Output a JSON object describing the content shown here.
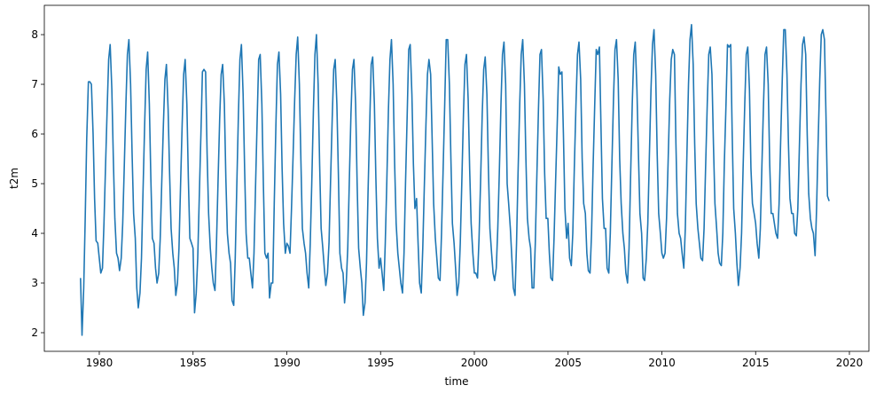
{
  "chart_data": {
    "type": "line",
    "xlabel": "time",
    "ylabel": "t2m",
    "color": "#1f77b4",
    "xlim": [
      1977.07,
      2021.04
    ],
    "ylim": [
      1.625,
      8.59
    ],
    "xticks": [
      1980,
      1985,
      1990,
      1995,
      2000,
      2005,
      2010,
      2015,
      2020
    ],
    "yticks": [
      2,
      3,
      4,
      5,
      6,
      7,
      8
    ],
    "x": [
      1979.0,
      1979.08,
      1979.17,
      1979.25,
      1979.33,
      1979.42,
      1979.5,
      1979.58,
      1979.67,
      1979.75,
      1979.83,
      1979.92,
      1980.0,
      1980.08,
      1980.17,
      1980.25,
      1980.33,
      1980.42,
      1980.5,
      1980.58,
      1980.67,
      1980.75,
      1980.83,
      1980.92,
      1981.0,
      1981.08,
      1981.17,
      1981.25,
      1981.33,
      1981.42,
      1981.5,
      1981.58,
      1981.67,
      1981.75,
      1981.83,
      1981.92,
      1982.0,
      1982.08,
      1982.17,
      1982.25,
      1982.33,
      1982.42,
      1982.5,
      1982.58,
      1982.67,
      1982.75,
      1982.83,
      1982.92,
      1983.0,
      1983.08,
      1983.17,
      1983.25,
      1983.33,
      1983.42,
      1983.5,
      1983.58,
      1983.67,
      1983.75,
      1983.83,
      1983.92,
      1984.0,
      1984.08,
      1984.17,
      1984.25,
      1984.33,
      1984.42,
      1984.5,
      1984.58,
      1984.67,
      1984.75,
      1984.83,
      1984.92,
      1985.0,
      1985.08,
      1985.17,
      1985.25,
      1985.33,
      1985.42,
      1985.5,
      1985.58,
      1985.67,
      1985.75,
      1985.83,
      1985.92,
      1986.0,
      1986.08,
      1986.17,
      1986.25,
      1986.33,
      1986.42,
      1986.5,
      1986.58,
      1986.67,
      1986.75,
      1986.83,
      1986.92,
      1987.0,
      1987.08,
      1987.17,
      1987.25,
      1987.33,
      1987.42,
      1987.5,
      1987.58,
      1987.67,
      1987.75,
      1987.83,
      1987.92,
      1988.0,
      1988.08,
      1988.17,
      1988.25,
      1988.33,
      1988.42,
      1988.5,
      1988.58,
      1988.67,
      1988.75,
      1988.83,
      1988.92,
      1989.0,
      1989.08,
      1989.17,
      1989.25,
      1989.33,
      1989.42,
      1989.5,
      1989.58,
      1989.67,
      1989.75,
      1989.83,
      1989.92,
      1990.0,
      1990.08,
      1990.17,
      1990.25,
      1990.33,
      1990.42,
      1990.5,
      1990.58,
      1990.67,
      1990.75,
      1990.83,
      1990.92,
      1991.0,
      1991.08,
      1991.17,
      1991.25,
      1991.33,
      1991.42,
      1991.5,
      1991.58,
      1991.67,
      1991.75,
      1991.83,
      1991.92,
      1992.0,
      1992.08,
      1992.17,
      1992.25,
      1992.33,
      1992.42,
      1992.5,
      1992.58,
      1992.67,
      1992.75,
      1992.83,
      1992.92,
      1993.0,
      1993.08,
      1993.17,
      1993.25,
      1993.33,
      1993.42,
      1993.5,
      1993.58,
      1993.67,
      1993.75,
      1993.83,
      1993.92,
      1994.0,
      1994.08,
      1994.17,
      1994.25,
      1994.33,
      1994.42,
      1994.5,
      1994.58,
      1994.67,
      1994.75,
      1994.83,
      1994.92,
      1995.0,
      1995.08,
      1995.17,
      1995.25,
      1995.33,
      1995.42,
      1995.5,
      1995.58,
      1995.67,
      1995.75,
      1995.83,
      1995.92,
      1996.0,
      1996.08,
      1996.17,
      1996.25,
      1996.33,
      1996.42,
      1996.5,
      1996.58,
      1996.67,
      1996.75,
      1996.83,
      1996.92,
      1997.0,
      1997.08,
      1997.17,
      1997.25,
      1997.33,
      1997.42,
      1997.5,
      1997.58,
      1997.67,
      1997.75,
      1997.83,
      1997.92,
      1998.0,
      1998.08,
      1998.17,
      1998.25,
      1998.33,
      1998.42,
      1998.5,
      1998.58,
      1998.67,
      1998.75,
      1998.83,
      1998.92,
      1999.0,
      1999.08,
      1999.17,
      1999.25,
      1999.33,
      1999.42,
      1999.5,
      1999.58,
      1999.67,
      1999.75,
      1999.83,
      1999.92,
      2000.0,
      2000.08,
      2000.17,
      2000.25,
      2000.33,
      2000.42,
      2000.5,
      2000.58,
      2000.67,
      2000.75,
      2000.83,
      2000.92,
      2001.0,
      2001.08,
      2001.17,
      2001.25,
      2001.33,
      2001.42,
      2001.5,
      2001.58,
      2001.67,
      2001.75,
      2001.83,
      2001.92,
      2002.0,
      2002.08,
      2002.17,
      2002.25,
      2002.33,
      2002.42,
      2002.5,
      2002.58,
      2002.67,
      2002.75,
      2002.83,
      2002.92,
      2003.0,
      2003.08,
      2003.17,
      2003.25,
      2003.33,
      2003.42,
      2003.5,
      2003.58,
      2003.67,
      2003.75,
      2003.83,
      2003.92,
      2004.0,
      2004.08,
      2004.17,
      2004.25,
      2004.33,
      2004.42,
      2004.5,
      2004.58,
      2004.67,
      2004.75,
      2004.83,
      2004.92,
      2005.0,
      2005.08,
      2005.17,
      2005.25,
      2005.33,
      2005.42,
      2005.5,
      2005.58,
      2005.67,
      2005.75,
      2005.83,
      2005.92,
      2006.0,
      2006.08,
      2006.17,
      2006.25,
      2006.33,
      2006.42,
      2006.5,
      2006.58,
      2006.67,
      2006.75,
      2006.83,
      2006.92,
      2007.0,
      2007.08,
      2007.17,
      2007.25,
      2007.33,
      2007.42,
      2007.5,
      2007.58,
      2007.67,
      2007.75,
      2007.83,
      2007.92,
      2008.0,
      2008.08,
      2008.17,
      2008.25,
      2008.33,
      2008.42,
      2008.5,
      2008.58,
      2008.67,
      2008.75,
      2008.83,
      2008.92,
      2009.0,
      2009.08,
      2009.17,
      2009.25,
      2009.33,
      2009.42,
      2009.5,
      2009.58,
      2009.67,
      2009.75,
      2009.83,
      2009.92,
      2010.0,
      2010.08,
      2010.17,
      2010.25,
      2010.33,
      2010.42,
      2010.5,
      2010.58,
      2010.67,
      2010.75,
      2010.83,
      2010.92,
      2011.0,
      2011.08,
      2011.17,
      2011.25,
      2011.33,
      2011.42,
      2011.5,
      2011.58,
      2011.67,
      2011.75,
      2011.83,
      2011.92,
      2012.0,
      2012.08,
      2012.17,
      2012.25,
      2012.33,
      2012.42,
      2012.5,
      2012.58,
      2012.67,
      2012.75,
      2012.83,
      2012.92,
      2013.0,
      2013.08,
      2013.17,
      2013.25,
      2013.33,
      2013.42,
      2013.5,
      2013.58,
      2013.67,
      2013.75,
      2013.83,
      2013.92,
      2014.0,
      2014.08,
      2014.17,
      2014.25,
      2014.33,
      2014.42,
      2014.5,
      2014.58,
      2014.67,
      2014.75,
      2014.83,
      2014.92,
      2015.0,
      2015.08,
      2015.17,
      2015.25,
      2015.33,
      2015.42,
      2015.5,
      2015.58,
      2015.67,
      2015.75,
      2015.83,
      2015.92,
      2016.0,
      2016.08,
      2016.17,
      2016.25,
      2016.33,
      2016.42,
      2016.5,
      2016.58,
      2016.67,
      2016.75,
      2016.83,
      2016.92,
      2017.0,
      2017.08,
      2017.17,
      2017.25,
      2017.33,
      2017.42,
      2017.5,
      2017.58,
      2017.67,
      2017.75,
      2017.83,
      2017.92,
      2018.0,
      2018.08,
      2018.17,
      2018.25,
      2018.33,
      2018.42,
      2018.5,
      2018.58,
      2018.67,
      2018.75,
      2018.83,
      2018.92
    ],
    "values": [
      3.1,
      1.95,
      2.9,
      4.3,
      5.9,
      7.05,
      7.05,
      7.0,
      6.0,
      4.7,
      3.85,
      3.8,
      3.5,
      3.2,
      3.3,
      4.2,
      5.3,
      6.5,
      7.5,
      7.8,
      6.9,
      5.5,
      4.3,
      3.6,
      3.5,
      3.25,
      3.5,
      4.2,
      5.3,
      6.6,
      7.6,
      7.9,
      7.0,
      5.6,
      4.4,
      3.9,
      2.9,
      2.5,
      2.8,
      3.5,
      4.8,
      6.2,
      7.3,
      7.65,
      6.6,
      5.1,
      3.9,
      3.8,
      3.3,
      3.0,
      3.2,
      3.9,
      5.0,
      6.2,
      7.1,
      7.4,
      6.5,
      5.2,
      4.1,
      3.6,
      3.3,
      2.75,
      3.0,
      3.7,
      4.9,
      6.2,
      7.2,
      7.5,
      6.6,
      5.1,
      3.9,
      3.8,
      3.7,
      2.4,
      2.8,
      3.5,
      4.7,
      6.0,
      7.25,
      7.3,
      7.25,
      5.6,
      4.4,
      3.7,
      3.3,
      3.0,
      2.85,
      3.8,
      5.0,
      6.3,
      7.2,
      7.4,
      6.6,
      5.1,
      4.0,
      3.6,
      3.4,
      2.65,
      2.55,
      3.5,
      4.9,
      6.4,
      7.5,
      7.8,
      6.8,
      5.3,
      4.0,
      3.5,
      3.5,
      3.2,
      2.9,
      3.6,
      4.9,
      6.3,
      7.5,
      7.6,
      6.6,
      5.0,
      3.6,
      3.5,
      3.6,
      2.7,
      3.0,
      3.0,
      4.6,
      6.2,
      7.4,
      7.65,
      6.8,
      5.3,
      4.2,
      3.6,
      3.8,
      3.75,
      3.6,
      4.5,
      5.5,
      6.7,
      7.6,
      7.95,
      7.0,
      5.5,
      4.1,
      3.8,
      3.6,
      3.2,
      2.9,
      3.8,
      5.0,
      6.5,
      7.6,
      8.0,
      7.0,
      5.4,
      4.1,
      3.7,
      3.3,
      2.95,
      3.2,
      3.8,
      5.0,
      6.3,
      7.3,
      7.5,
      6.6,
      5.2,
      3.6,
      3.3,
      3.2,
      2.6,
      3.0,
      3.7,
      5.0,
      6.4,
      7.3,
      7.5,
      6.6,
      5.0,
      3.7,
      3.3,
      3.0,
      2.35,
      2.6,
      3.4,
      4.8,
      6.2,
      7.4,
      7.55,
      6.6,
      5.1,
      3.9,
      3.3,
      3.5,
      3.2,
      2.85,
      3.8,
      5.0,
      6.5,
      7.5,
      7.9,
      7.0,
      5.4,
      4.2,
      3.6,
      3.3,
      3.0,
      2.8,
      3.6,
      5.0,
      6.4,
      7.7,
      7.8,
      6.8,
      5.4,
      4.5,
      4.7,
      3.8,
      3.0,
      2.8,
      3.7,
      4.9,
      6.2,
      7.2,
      7.5,
      7.2,
      5.9,
      4.6,
      3.9,
      3.5,
      3.1,
      3.05,
      4.0,
      5.2,
      6.6,
      7.9,
      7.9,
      7.0,
      5.5,
      4.2,
      3.8,
      3.3,
      2.75,
      3.0,
      3.8,
      5.0,
      6.4,
      7.4,
      7.6,
      6.7,
      5.3,
      4.2,
      3.6,
      3.2,
      3.2,
      3.1,
      3.9,
      5.0,
      6.4,
      7.3,
      7.55,
      6.8,
      5.3,
      4.1,
      3.6,
      3.2,
      3.05,
      3.3,
      4.1,
      5.2,
      6.6,
      7.6,
      7.85,
      7.0,
      5.0,
      4.6,
      4.1,
      3.5,
      2.9,
      2.75,
      3.8,
      5.2,
      6.6,
      7.6,
      7.9,
      7.0,
      5.5,
      4.3,
      3.9,
      3.7,
      2.9,
      2.9,
      3.8,
      5.1,
      6.5,
      7.6,
      7.7,
      6.7,
      5.2,
      4.3,
      4.3,
      3.6,
      3.1,
      3.05,
      3.9,
      5.0,
      6.2,
      7.35,
      7.2,
      7.25,
      6.0,
      4.5,
      3.9,
      4.2,
      3.5,
      3.35,
      4.0,
      5.3,
      6.6,
      7.6,
      7.85,
      7.1,
      5.5,
      4.6,
      4.4,
      3.6,
      3.25,
      3.2,
      4.0,
      5.3,
      6.6,
      7.7,
      7.6,
      7.75,
      6.2,
      4.7,
      4.1,
      4.1,
      3.3,
      3.2,
      4.0,
      5.3,
      6.7,
      7.7,
      7.9,
      7.1,
      5.5,
      4.6,
      4.0,
      3.7,
      3.2,
      3.0,
      3.7,
      5.1,
      6.6,
      7.6,
      7.85,
      6.9,
      5.6,
      4.4,
      4.0,
      3.1,
      3.05,
      3.5,
      4.2,
      5.5,
      6.9,
      7.8,
      8.1,
      7.2,
      5.6,
      4.4,
      4.0,
      3.6,
      3.5,
      3.6,
      4.3,
      5.4,
      6.7,
      7.5,
      7.7,
      7.6,
      5.8,
      4.4,
      4.0,
      3.9,
      3.6,
      3.3,
      4.1,
      5.5,
      7.0,
      7.9,
      8.2,
      7.4,
      5.8,
      4.6,
      4.1,
      3.8,
      3.5,
      3.45,
      4.1,
      5.3,
      6.6,
      7.6,
      7.75,
      7.2,
      5.8,
      4.6,
      4.1,
      3.6,
      3.4,
      3.35,
      4.0,
      5.4,
      6.6,
      7.8,
      7.75,
      7.8,
      6.0,
      4.5,
      4.0,
      3.4,
      2.95,
      3.3,
      4.0,
      5.3,
      6.6,
      7.6,
      7.75,
      6.9,
      5.3,
      4.6,
      4.4,
      4.2,
      3.8,
      3.5,
      4.1,
      5.3,
      6.6,
      7.6,
      7.75,
      7.0,
      5.4,
      4.4,
      4.4,
      4.2,
      4.0,
      3.9,
      4.6,
      5.8,
      7.1,
      8.1,
      8.1,
      7.2,
      5.8,
      4.7,
      4.4,
      4.4,
      4.0,
      3.95,
      4.5,
      5.7,
      7.0,
      7.8,
      7.95,
      7.6,
      6.0,
      4.8,
      4.3,
      4.1,
      4.0,
      3.55,
      4.5,
      5.8,
      7.1,
      8.0,
      8.1,
      7.9,
      6.4,
      4.75,
      4.65
    ]
  }
}
